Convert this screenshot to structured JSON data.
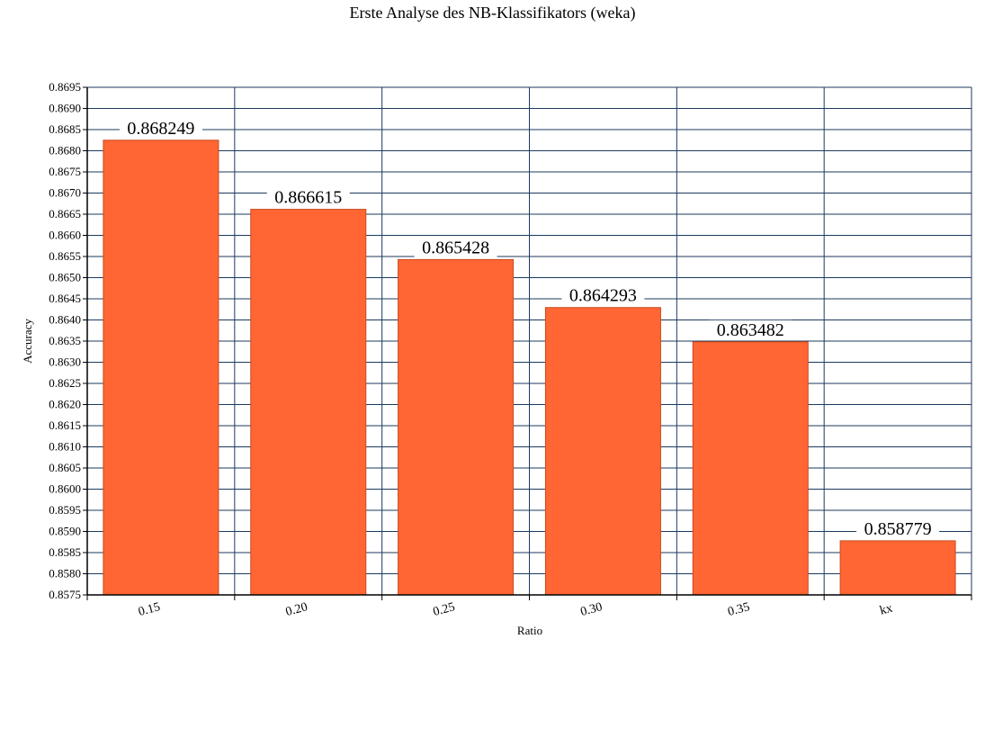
{
  "chart_data": {
    "type": "bar",
    "title": "Erste Analyse des NB-Klassifikators (weka)",
    "xlabel": "Ratio",
    "ylabel": "Accuracy",
    "categories": [
      "0.15",
      "0.20",
      "0.25",
      "0.30",
      "0.35",
      "kx"
    ],
    "series": [
      {
        "values": [
          0.868249,
          0.866615,
          0.865428,
          0.864293,
          0.863482,
          0.858779
        ],
        "data_labels": [
          "0.868249",
          "0.866615",
          "0.865428",
          "0.864293",
          "0.863482",
          "0.858779"
        ]
      }
    ],
    "ylim": [
      0.8575,
      0.8695
    ],
    "ytick_step": 0.0005,
    "ytick_labels": [
      "0.8575",
      "0.8580",
      "0.8585",
      "0.8590",
      "0.8595",
      "0.8600",
      "0.8605",
      "0.8610",
      "0.8615",
      "0.8620",
      "0.8625",
      "0.8630",
      "0.8635",
      "0.8640",
      "0.8645",
      "0.8650",
      "0.8655",
      "0.8660",
      "0.8665",
      "0.8670",
      "0.8675",
      "0.8680",
      "0.8685",
      "0.8690",
      "0.8695"
    ],
    "grid": true,
    "legend": "none",
    "colors": {
      "bar": "#ff6633",
      "bar_edge": "#c84a1e",
      "grid": "#1c3a5e",
      "axis": "#000000"
    }
  }
}
